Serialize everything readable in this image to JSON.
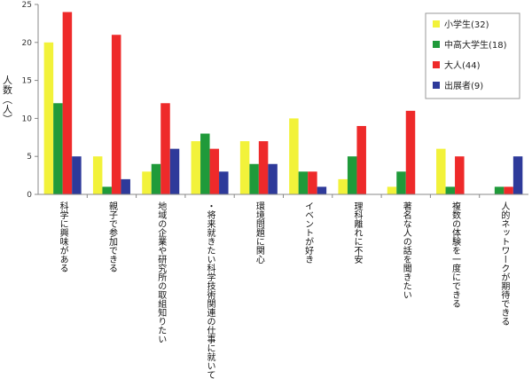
{
  "chart_data": {
    "type": "bar",
    "title": "",
    "xlabel": "",
    "ylabel": "人数（人）",
    "ylim": [
      0,
      25
    ],
    "yticks": [
      0,
      5,
      10,
      15,
      20,
      25
    ],
    "grid": false,
    "legend_position": "top-right",
    "categories": [
      "科学に興味がある",
      "親子で参加できる",
      "地域の企業や研究所の取組知りたい",
      "・将来就きたい科学技術関連の仕事に就いている",
      "環境問題に関心",
      "イベントが好き",
      "理科離れに不安",
      "著名な人の話を聞きたい",
      "複数の体験を一度にできる",
      "人的ネットワークが期待できる"
    ],
    "series": [
      {
        "name": "小学生(32)",
        "color": "#f2f23a",
        "values": [
          20,
          5,
          3,
          7,
          7,
          10,
          2,
          1,
          6,
          0
        ]
      },
      {
        "name": "中高大学生(18)",
        "color": "#1f9a3a",
        "values": [
          12,
          1,
          4,
          8,
          4,
          3,
          5,
          3,
          1,
          1
        ]
      },
      {
        "name": "大人(44)",
        "color": "#ee2a2a",
        "values": [
          24,
          21,
          12,
          6,
          7,
          3,
          9,
          11,
          5,
          1
        ]
      },
      {
        "name": "出展者(9)",
        "color": "#2e3a9a",
        "values": [
          5,
          2,
          6,
          3,
          4,
          1,
          0,
          0,
          0,
          5
        ]
      }
    ]
  }
}
